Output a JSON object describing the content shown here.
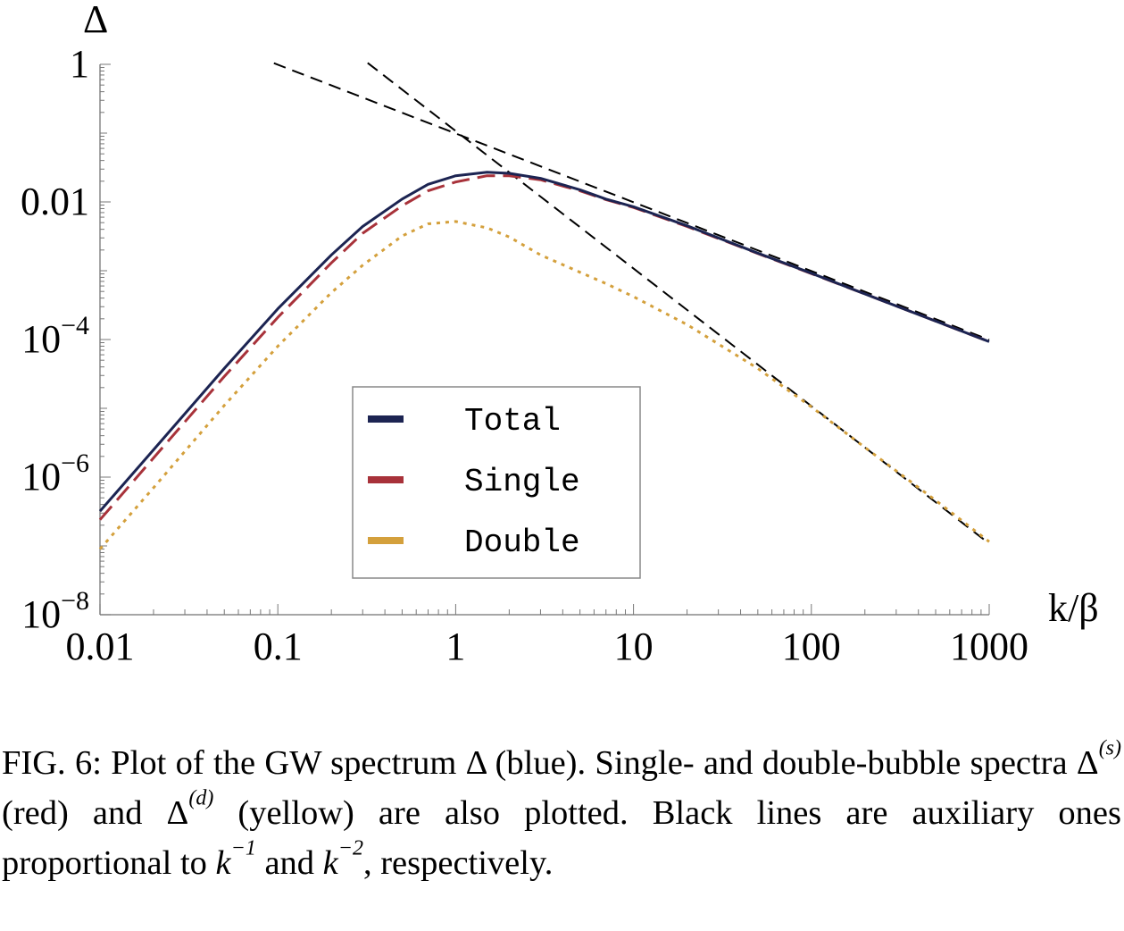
{
  "chart_data": {
    "type": "line",
    "xscale": "log",
    "yscale": "log",
    "xlim": [
      0.01,
      1000
    ],
    "ylim": [
      1e-08,
      1
    ],
    "xlabel": "k/β",
    "ylabel": "Δ",
    "x_ticks": [
      "0.01",
      "0.1",
      "1",
      "10",
      "100",
      "1000"
    ],
    "y_ticks": [
      {
        "value": 1,
        "base": "1",
        "exp": ""
      },
      {
        "value": 0.01,
        "base": "0.01",
        "exp": ""
      },
      {
        "value": 0.0001,
        "base": "10",
        "exp": "−4"
      },
      {
        "value": 1e-06,
        "base": "10",
        "exp": "−6"
      },
      {
        "value": 1e-08,
        "base": "10",
        "exp": "−8"
      }
    ],
    "x": [
      0.01,
      0.02,
      0.05,
      0.1,
      0.2,
      0.3,
      0.5,
      0.7,
      1,
      1.5,
      2,
      3,
      5,
      7,
      10,
      20,
      50,
      100,
      200,
      500,
      1000
    ],
    "series": [
      {
        "name": "Total",
        "color": "#1c2452",
        "style": "solid",
        "values": [
          3.2e-07,
          2.5e-06,
          3.8e-05,
          0.00028,
          0.0017,
          0.0044,
          0.011,
          0.018,
          0.024,
          0.027,
          0.026,
          0.022,
          0.015,
          0.011,
          0.0085,
          0.0045,
          0.0018,
          0.00092,
          0.00046,
          0.000185,
          9.3e-05
        ]
      },
      {
        "name": "Single",
        "color": "#a8323a",
        "style": "dashed",
        "values": [
          2.4e-07,
          1.9e-06,
          2.9e-05,
          0.00021,
          0.0013,
          0.0035,
          0.0088,
          0.0145,
          0.0195,
          0.024,
          0.024,
          0.021,
          0.0145,
          0.0108,
          0.0083,
          0.0044,
          0.00178,
          0.00091,
          0.00046,
          0.000185,
          9.3e-05
        ]
      },
      {
        "name": "Double",
        "color": "#d4a03c",
        "style": "dotted",
        "values": [
          9e-08,
          7e-07,
          1.1e-05,
          8e-05,
          0.00048,
          0.0012,
          0.0032,
          0.0048,
          0.0052,
          0.0042,
          0.0031,
          0.0017,
          0.00095,
          0.00065,
          0.00042,
          0.000165,
          3.8e-05,
          1.05e-05,
          2.7e-06,
          4.6e-07,
          1.15e-07
        ]
      }
    ],
    "reference_lines": [
      {
        "name": "k^-1",
        "color": "#000000",
        "style": "dashed",
        "x": [
          0.095,
          1000
        ],
        "values": [
          1.04,
          9.9e-05
        ]
      },
      {
        "name": "k^-2",
        "color": "#000000",
        "style": "dashed",
        "x": [
          0.32,
          1000
        ],
        "values": [
          1.05,
          1.08e-07
        ]
      }
    ],
    "legend": {
      "position": "center-bottom",
      "entries": [
        "Total",
        "Single",
        "Double"
      ]
    }
  },
  "caption": {
    "label": "FIG. 6:",
    "t1": "Plot of the GW spectrum Δ (blue).  Single- and double-bubble spectra Δ",
    "sup_s": "(s)",
    "t2": " (red) and Δ",
    "sup_d": "(d)",
    "t3": " (yellow) are also plotted.  Black lines are auxiliary ones proportional to ",
    "k1": "k",
    "sup_m1": "−1",
    "t4": " and ",
    "k2": "k",
    "sup_m2": "−2",
    "t5": ", respectively."
  }
}
